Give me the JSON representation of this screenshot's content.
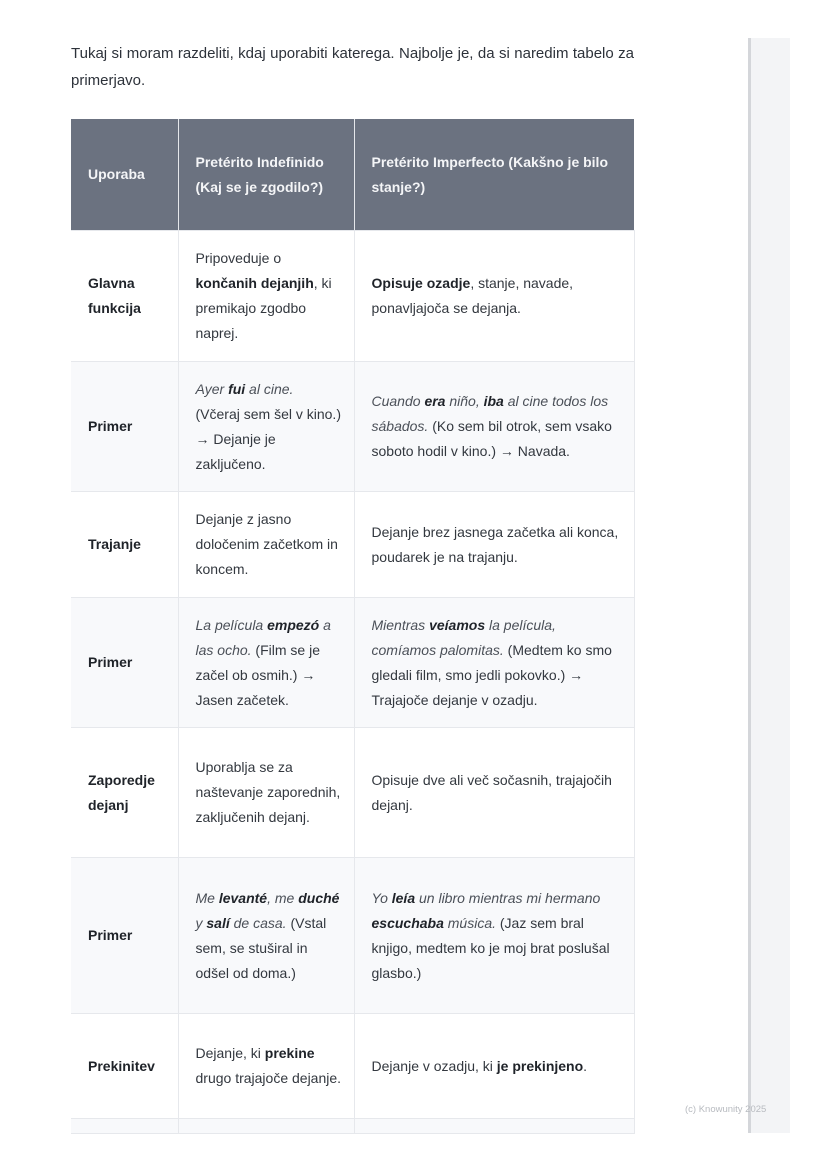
{
  "intro": "Tukaj si moram razdeliti, kdaj uporabiti katerega. Najbolje je, da si naredim tabelo za primerjavo.",
  "table": {
    "headers": [
      "Uporaba",
      "Pretérito Indefinido (Kaj se je zgodilo?)",
      "Pretérito Imperfecto (Kakšno je bilo stanje?)"
    ],
    "rows": [
      {
        "label": "Glavna funkcija",
        "c1": [
          {
            "t": "Pripoveduje o "
          },
          {
            "t": "končanih dejanjih",
            "b": 1
          },
          {
            "t": ", ki premikajo zgodbo naprej."
          }
        ],
        "c2": [
          {
            "t": "Opisuje ozadje",
            "b": 1
          },
          {
            "t": ", stanje, navade, ponavljajoča se dejanja."
          }
        ]
      },
      {
        "label": "Primer",
        "c1": [
          {
            "t": "Ayer ",
            "i": 1
          },
          {
            "t": "fui",
            "i": 1,
            "b": 1
          },
          {
            "t": " al cine.",
            "i": 1
          },
          {
            "t": " (Včeraj sem šel v kino.) → Dejanje je zaključeno."
          }
        ],
        "c2": [
          {
            "t": "Cuando ",
            "i": 1
          },
          {
            "t": "era",
            "i": 1,
            "b": 1
          },
          {
            "t": " niño, ",
            "i": 1
          },
          {
            "t": "iba",
            "i": 1,
            "b": 1
          },
          {
            "t": " al cine todos los sábados.",
            "i": 1
          },
          {
            "t": " (Ko sem bil otrok, sem vsako soboto hodil v kino.) → Navada."
          }
        ]
      },
      {
        "label": "Trajanje",
        "c1": [
          {
            "t": "Dejanje z jasno določenim začetkom in koncem."
          }
        ],
        "c2": [
          {
            "t": "Dejanje brez jasnega začetka ali konca, poudarek je na trajanju."
          }
        ]
      },
      {
        "label": "Primer",
        "c1": [
          {
            "t": "La película ",
            "i": 1
          },
          {
            "t": "empezó",
            "i": 1,
            "b": 1
          },
          {
            "t": " a las ocho.",
            "i": 1
          },
          {
            "t": " (Film se je začel ob osmih.) → Jasen začetek."
          }
        ],
        "c2": [
          {
            "t": "Mientras ",
            "i": 1
          },
          {
            "t": "veíamos",
            "i": 1,
            "b": 1
          },
          {
            "t": " la película, comíamos palomitas.",
            "i": 1
          },
          {
            "t": " (Medtem ko smo gledali film, smo jedli pokovko.) → Trajajoče dejanje v ozadju."
          }
        ]
      },
      {
        "label": "Zaporedje dejanj",
        "c1": [
          {
            "t": "Uporablja se za naštevanje zaporednih, zaključenih dejanj."
          }
        ],
        "c2": [
          {
            "t": "Opisuje dve ali več sočasnih, trajajočih dejanj."
          }
        ]
      },
      {
        "label": "Primer",
        "c1": [
          {
            "t": "Me ",
            "i": 1
          },
          {
            "t": "levanté",
            "i": 1,
            "b": 1
          },
          {
            "t": ", me ",
            "i": 1
          },
          {
            "t": "duché",
            "i": 1,
            "b": 1
          },
          {
            "t": " y ",
            "i": 1
          },
          {
            "t": "salí",
            "i": 1,
            "b": 1
          },
          {
            "t": " de casa.",
            "i": 1
          },
          {
            "t": " (Vstal sem, se stuširal in odšel od doma.)"
          }
        ],
        "c2": [
          {
            "t": "Yo ",
            "i": 1
          },
          {
            "t": "leía",
            "i": 1,
            "b": 1
          },
          {
            "t": " un libro mientras mi hermano ",
            "i": 1
          },
          {
            "t": "escuchaba",
            "i": 1,
            "b": 1
          },
          {
            "t": " música.",
            "i": 1
          },
          {
            "t": " (Jaz sem bral knjigo, medtem ko je moj brat poslušal glasbo.)"
          }
        ]
      },
      {
        "label": "Prekinitev",
        "c1": [
          {
            "t": "Dejanje, ki "
          },
          {
            "t": "prekine",
            "b": 1
          },
          {
            "t": " drugo trajajoče dejanje."
          }
        ],
        "c2": [
          {
            "t": "Dejanje v ozadju, ki "
          },
          {
            "t": "je prekinjeno",
            "b": 1
          },
          {
            "t": "."
          }
        ]
      }
    ]
  },
  "footer": {
    "copyright": "(c) Knowunity 2025"
  }
}
